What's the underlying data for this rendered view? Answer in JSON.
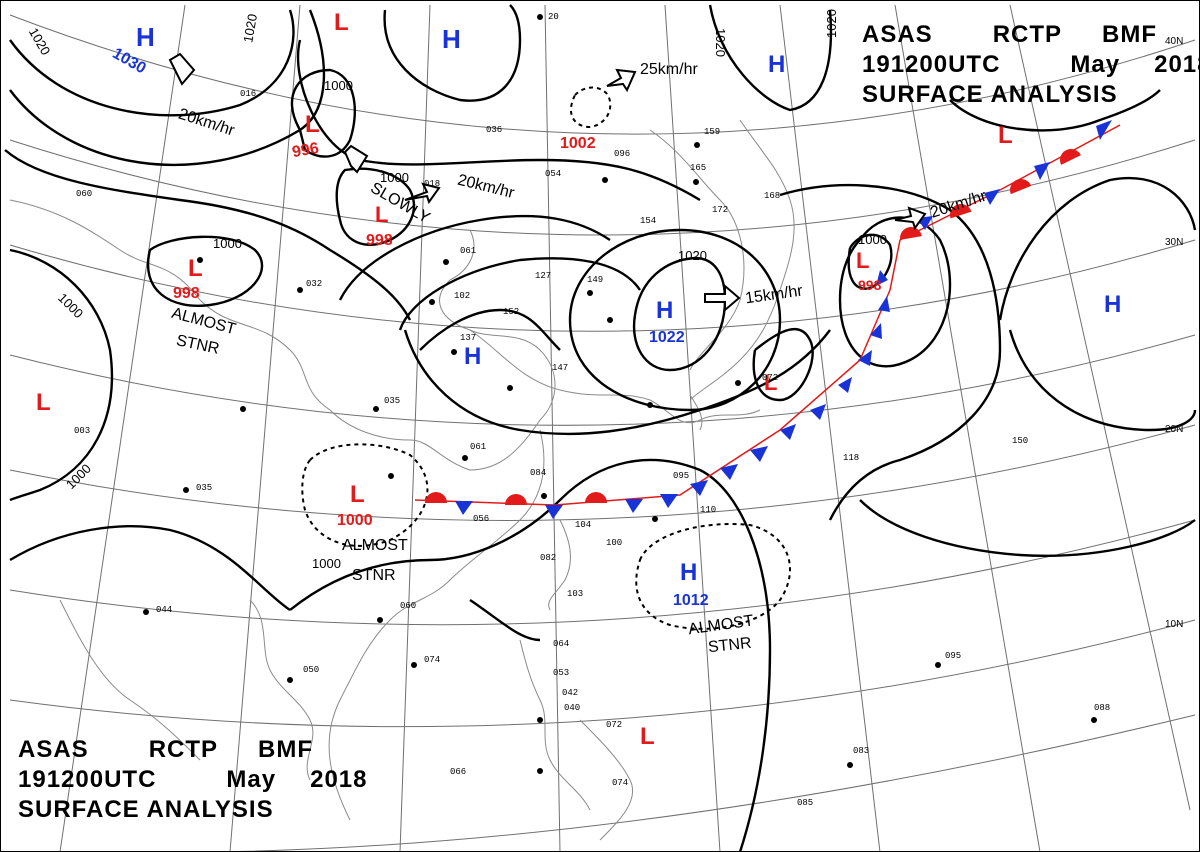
{
  "title": {
    "agency": "ASAS",
    "station": "RCTP",
    "office": "BMF",
    "time": "191200UTC",
    "month": "May",
    "year": "2018",
    "product": "SURFACE ANALYSIS"
  },
  "colors": {
    "high": "#1a33d6",
    "low": "#e31a1a",
    "cold_front": "#1a33d6",
    "warm_front": "#e31a1a",
    "isobar": "#000000",
    "grid": "#707070",
    "coast": "#8a8a8a"
  },
  "latitude_labels": [
    "40N",
    "30N",
    "20N",
    "10N"
  ],
  "pressure_centers": [
    {
      "type": "H",
      "value": "1030"
    },
    {
      "type": "L",
      "value": ""
    },
    {
      "type": "H",
      "value": ""
    },
    {
      "type": "H",
      "value": ""
    },
    {
      "type": "L",
      "value": "996"
    },
    {
      "type": "L",
      "value": "998"
    },
    {
      "type": "L",
      "value": "1002"
    },
    {
      "type": "L",
      "value": "998"
    },
    {
      "type": "H",
      "value": ""
    },
    {
      "type": "H",
      "value": "1022"
    },
    {
      "type": "L",
      "value": ""
    },
    {
      "type": "L",
      "value": "998"
    },
    {
      "type": "L",
      "value": ""
    },
    {
      "type": "L",
      "value": ""
    },
    {
      "type": "H",
      "value": ""
    },
    {
      "type": "L",
      "value": "1000"
    },
    {
      "type": "H",
      "value": "1012"
    },
    {
      "type": "L",
      "value": ""
    }
  ],
  "isobar_labels": [
    "1020",
    "1020",
    "1000",
    "1000",
    "1000",
    "1000",
    "1020",
    "1020",
    "1000",
    "1000",
    "1020",
    "1000"
  ],
  "motion_labels": [
    "20km/hr",
    "25km/hr",
    "20km/hr",
    "SLOWLY",
    "15km/hr",
    "20km/hr",
    "ALMOST",
    "STNR",
    "ALMOST",
    "STNR",
    "ALMOST",
    "STNR"
  ],
  "station_plots": [
    "20",
    "154",
    "165",
    "172",
    "168",
    "127",
    "149",
    "159",
    "096",
    "036",
    "018",
    "054",
    "102",
    "061",
    "152",
    "137",
    "147",
    "035",
    "061",
    "084",
    "104",
    "056",
    "100",
    "103",
    "082",
    "095",
    "110",
    "072",
    "118",
    "150",
    "060",
    "050",
    "074",
    "066",
    "074",
    "072",
    "095",
    "088",
    "083",
    "085",
    "064",
    "053",
    "042",
    "040",
    "044",
    "035",
    "003",
    "060",
    "032",
    "016"
  ]
}
